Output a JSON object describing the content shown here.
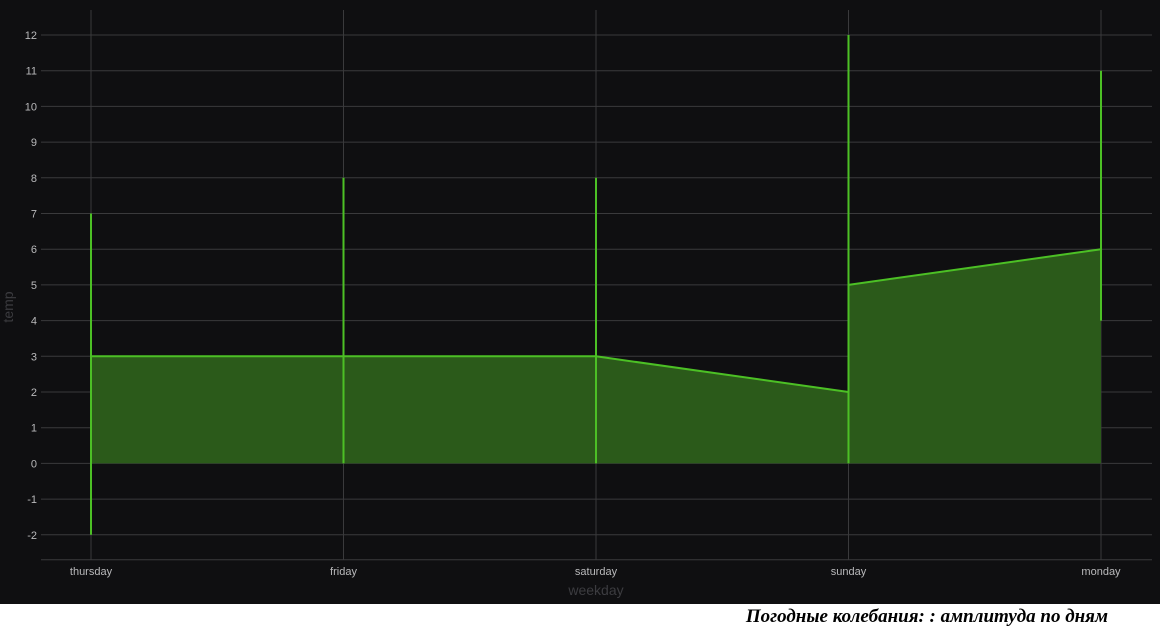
{
  "chart_data": {
    "type": "area",
    "x_field_label": "weekday",
    "y_field_label": "temp",
    "categories": [
      "thursday",
      "friday",
      "saturday",
      "sunday",
      "monday"
    ],
    "series": [
      {
        "values": [
          3,
          3,
          3,
          2,
          6
        ],
        "color": "#4cc025",
        "fill": "#2b5a1a"
      }
    ],
    "ranges": [
      {
        "day": "thursday",
        "low": -2,
        "high": 7,
        "from": 3,
        "to": 3
      },
      {
        "day": "friday",
        "low": 0,
        "high": 8,
        "from": 3,
        "to": 3
      },
      {
        "day": "saturday",
        "low": 0,
        "high": 8,
        "from": 3,
        "to": 3
      },
      {
        "day": "sunday",
        "low": 0,
        "high": 12,
        "from": 2,
        "to": 5
      },
      {
        "day": "monday",
        "low": 4,
        "high": 11,
        "from": 6,
        "to": 6
      }
    ],
    "ylim": [
      -2.7,
      12.7
    ],
    "yticks": [
      -2,
      -1,
      0,
      1,
      2,
      3,
      4,
      5,
      6,
      7,
      8,
      9,
      10,
      11,
      12
    ],
    "grid": true,
    "background": "#0f0f11"
  },
  "caption": "Погодные колебания: : амплитуда по дням"
}
